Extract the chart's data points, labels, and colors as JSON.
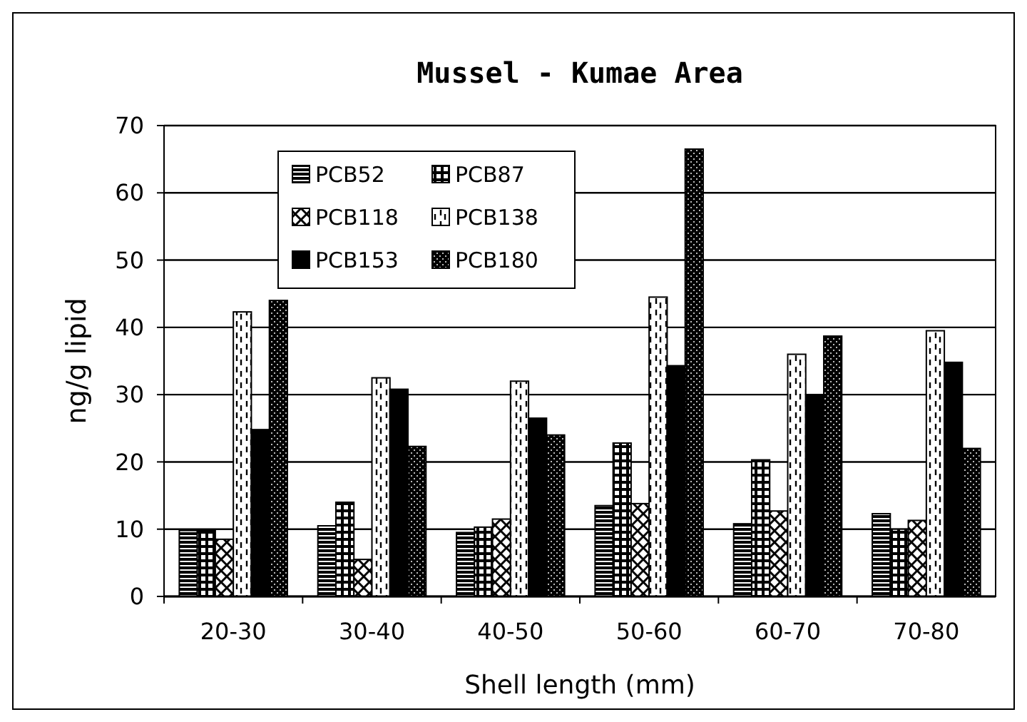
{
  "chart_data": {
    "type": "bar",
    "title": "Mussel - Kumae Area",
    "xlabel": "Shell length (mm)",
    "ylabel": "ng/g lipid",
    "categories": [
      "20-30",
      "30-40",
      "40-50",
      "50-60",
      "60-70",
      "70-80"
    ],
    "series": [
      {
        "name": "PCB52",
        "color": "#000000",
        "values": [
          9.8,
          10.5,
          9.5,
          13.5,
          10.8,
          12.3
        ]
      },
      {
        "name": "PCB87",
        "color": "#000000",
        "values": [
          9.8,
          14,
          10.3,
          22.8,
          20.3,
          10
        ]
      },
      {
        "name": "PCB118",
        "color": "#000000",
        "values": [
          8.5,
          5.5,
          11.5,
          13.8,
          12.7,
          11.3
        ]
      },
      {
        "name": "PCB138",
        "color": "#000000",
        "values": [
          42.3,
          32.5,
          32,
          44.5,
          36,
          39.5
        ]
      },
      {
        "name": "PCB153",
        "color": "#000000",
        "values": [
          24.8,
          30.8,
          26.5,
          34.3,
          30,
          34.8
        ]
      },
      {
        "name": "PCB180",
        "color": "#000000",
        "values": [
          44,
          22.3,
          24,
          66.5,
          38.7,
          22
        ]
      }
    ],
    "ylim": [
      0,
      70
    ],
    "yticks": [
      0,
      10,
      20,
      30,
      40,
      50,
      60,
      70
    ],
    "grid": "y",
    "legend": "top left"
  }
}
